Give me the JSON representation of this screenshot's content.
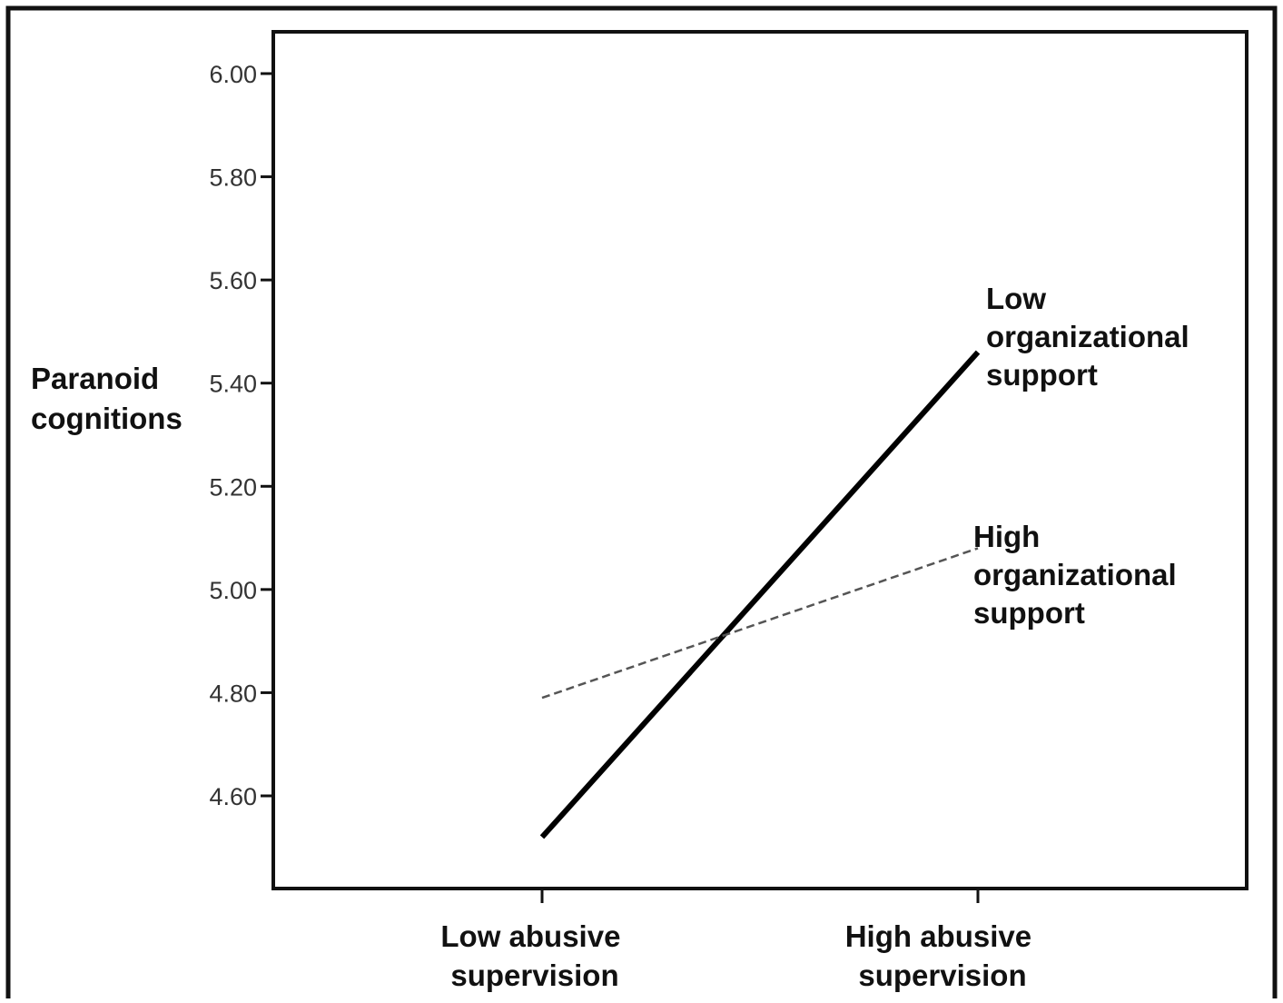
{
  "chart_data": {
    "type": "line",
    "title": "",
    "ylabel": [
      "Paranoid",
      "cognitions"
    ],
    "xlabel": "",
    "categories": [
      [
        "Low abusive",
        "supervision"
      ],
      [
        "High abusive",
        "supervision"
      ]
    ],
    "yticks": [
      "6.00",
      "5.80",
      "5.60",
      "5.40",
      "5.20",
      "5.00",
      "4.80",
      "4.60"
    ],
    "ylim": [
      4.42,
      6.08
    ],
    "series": [
      {
        "name": [
          "Low",
          "organizational",
          "support"
        ],
        "values": [
          4.52,
          5.46
        ],
        "style": "solid",
        "color": "#000000"
      },
      {
        "name": [
          "High",
          "organizational",
          "support"
        ],
        "values": [
          4.79,
          5.08
        ],
        "style": "dashed",
        "color": "#555555"
      }
    ],
    "grid": false,
    "legend": "inline-right"
  }
}
